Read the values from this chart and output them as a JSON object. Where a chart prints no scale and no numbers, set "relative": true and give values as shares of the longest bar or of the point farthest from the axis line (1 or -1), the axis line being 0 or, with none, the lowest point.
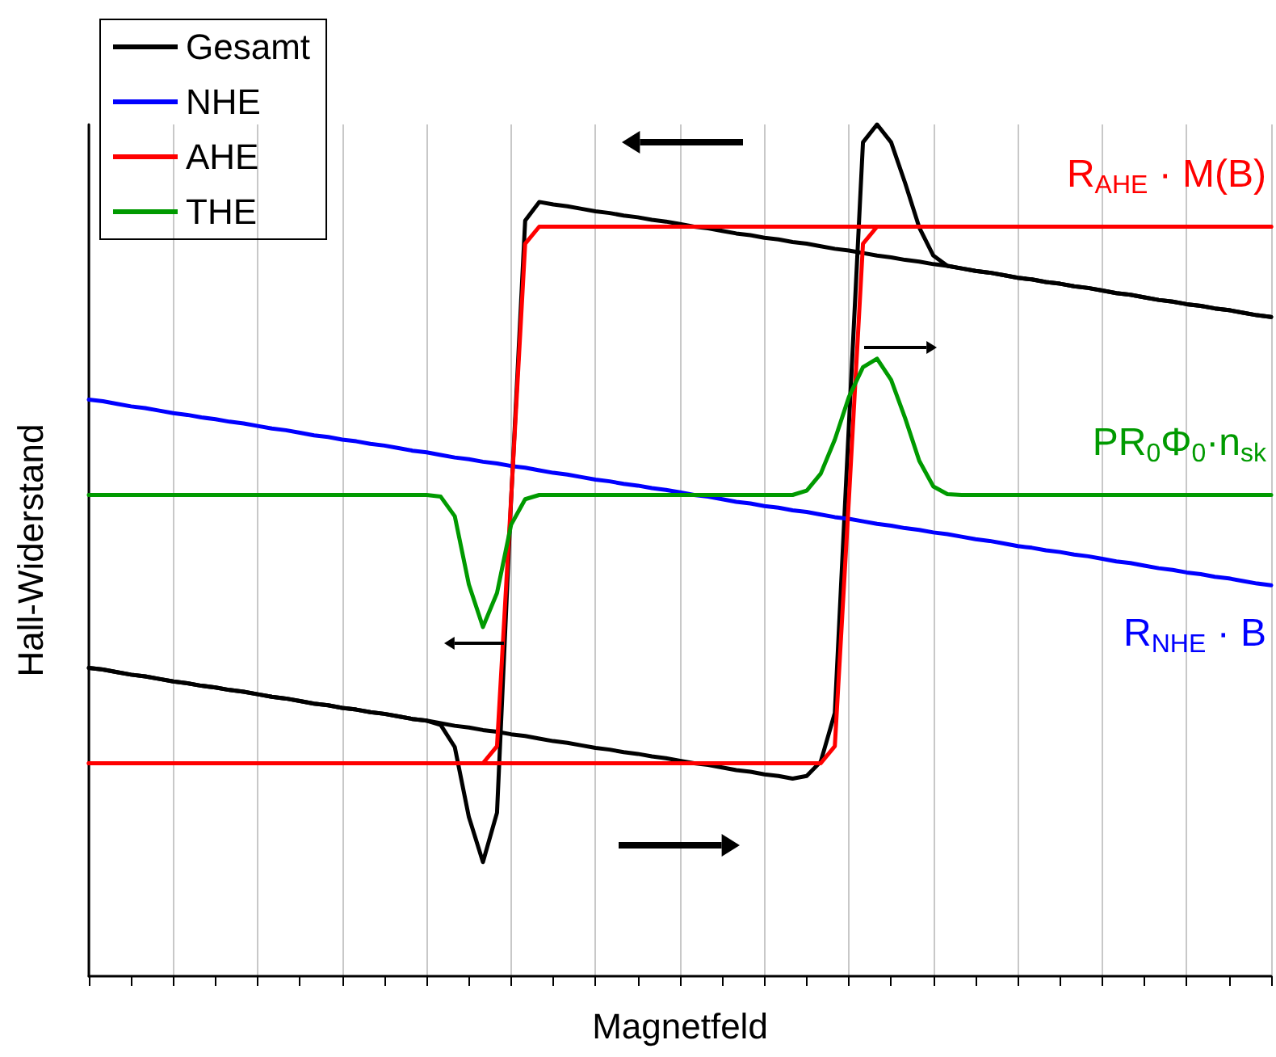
{
  "chart_data": {
    "type": "line",
    "relative": true,
    "xlabel": "Magnetfeld",
    "ylabel": "Hall-Widerstand",
    "legend": "top left",
    "grid": "x",
    "line_style": "solid",
    "categories": [
      null,
      null,
      null,
      null,
      null,
      null,
      null,
      null,
      null,
      null,
      null,
      null,
      null,
      null,
      null,
      null,
      null,
      null,
      null,
      null,
      null,
      null,
      null,
      null,
      null,
      null,
      null,
      null,
      null,
      null,
      null,
      null,
      null,
      null,
      null,
      null,
      null,
      null,
      null,
      null,
      null,
      null,
      null,
      null,
      null,
      null,
      null,
      null,
      null,
      null,
      null,
      null,
      null,
      null,
      null,
      null,
      null,
      null,
      null,
      null,
      null,
      null,
      null,
      null,
      null,
      null,
      null,
      null,
      null,
      null,
      null,
      null,
      null,
      null,
      null,
      null,
      null,
      null,
      null,
      null,
      null,
      null,
      null,
      null,
      null
    ],
    "series": [
      {
        "name": "Gesamt",
        "color": "#000000",
        "values": [
          0.362,
          0.36,
          0.357,
          0.354,
          0.352,
          0.349,
          0.346,
          0.344,
          0.341,
          0.339,
          0.336,
          0.334,
          0.331,
          0.328,
          0.326,
          0.323,
          0.32,
          0.318,
          0.315,
          0.313,
          0.31,
          0.308,
          0.305,
          0.302,
          0.3,
          0.297,
          0.294,
          0.292,
          0.289,
          0.287,
          0.284,
          0.282,
          0.279,
          0.276,
          0.274,
          0.271,
          0.268,
          0.266,
          0.263,
          0.261,
          0.258,
          0.256,
          0.253,
          0.25,
          0.248,
          0.245,
          0.242,
          0.24,
          0.237,
          0.235,
          0.232,
          0.235,
          0.252,
          0.309,
          0.647,
          0.979,
          1,
          0.979,
          0.931,
          0.879,
          0.846,
          0.834,
          0.831,
          0.828,
          0.826,
          0.823,
          0.82,
          0.818,
          0.815,
          0.813,
          0.81,
          0.808,
          0.805,
          0.802,
          0.8,
          0.797,
          0.794,
          0.792,
          0.789,
          0.787,
          0.784,
          0.782,
          0.779,
          0.776,
          0.774
        ]
      },
      {
        "color": "#000000",
        "values": [
          0.362,
          0.36,
          0.357,
          0.354,
          0.352,
          0.349,
          0.346,
          0.344,
          0.341,
          0.339,
          0.336,
          0.334,
          0.331,
          0.328,
          0.326,
          0.323,
          0.32,
          0.318,
          0.315,
          0.313,
          0.31,
          0.308,
          0.305,
          0.302,
          0.3,
          0.295,
          0.269,
          0.187,
          0.134,
          0.192,
          0.559,
          0.887,
          0.909,
          0.906,
          0.904,
          0.901,
          0.898,
          0.896,
          0.893,
          0.891,
          0.888,
          0.886,
          0.883,
          0.88,
          0.878,
          0.875,
          0.872,
          0.87,
          0.867,
          0.865,
          0.862,
          0.86,
          0.857,
          0.854,
          0.852,
          0.849,
          0.846,
          0.844,
          0.841,
          0.839,
          0.836,
          0.834,
          0.831,
          0.828,
          0.826,
          0.823,
          0.82,
          0.818,
          0.815,
          0.813,
          0.81,
          0.808,
          0.805,
          0.802,
          0.8,
          0.797,
          0.794,
          0.792,
          0.789,
          0.787,
          0.784,
          0.782,
          0.779,
          0.776,
          0.774
        ]
      },
      {
        "name": "NHE",
        "color": "#0000ff",
        "values": [
          0.677,
          0.675,
          0.672,
          0.669,
          0.667,
          0.664,
          0.661,
          0.659,
          0.656,
          0.654,
          0.651,
          0.649,
          0.646,
          0.643,
          0.641,
          0.638,
          0.635,
          0.633,
          0.63,
          0.628,
          0.625,
          0.623,
          0.62,
          0.617,
          0.615,
          0.612,
          0.609,
          0.607,
          0.604,
          0.602,
          0.599,
          0.597,
          0.594,
          0.591,
          0.589,
          0.586,
          0.583,
          0.581,
          0.578,
          0.576,
          0.573,
          0.571,
          0.568,
          0.565,
          0.563,
          0.56,
          0.557,
          0.555,
          0.552,
          0.55,
          0.547,
          0.545,
          0.542,
          0.539,
          0.537,
          0.534,
          0.531,
          0.529,
          0.526,
          0.524,
          0.521,
          0.519,
          0.516,
          0.513,
          0.511,
          0.508,
          0.505,
          0.503,
          0.5,
          0.498,
          0.495,
          0.493,
          0.49,
          0.487,
          0.485,
          0.482,
          0.479,
          0.477,
          0.474,
          0.472,
          0.469,
          0.467,
          0.464,
          0.461,
          0.459
        ]
      },
      {
        "name": "AHE",
        "color": "#ff0000",
        "values": [
          0.25,
          0.25,
          0.25,
          0.25,
          0.25,
          0.25,
          0.25,
          0.25,
          0.25,
          0.25,
          0.25,
          0.25,
          0.25,
          0.25,
          0.25,
          0.25,
          0.25,
          0.25,
          0.25,
          0.25,
          0.25,
          0.25,
          0.25,
          0.25,
          0.25,
          0.25,
          0.25,
          0.25,
          0.25,
          0.25,
          0.25,
          0.25,
          0.25,
          0.25,
          0.25,
          0.25,
          0.25,
          0.25,
          0.25,
          0.25,
          0.25,
          0.25,
          0.25,
          0.25,
          0.25,
          0.25,
          0.25,
          0.25,
          0.25,
          0.25,
          0.25,
          0.25,
          0.25,
          0.27,
          0.56,
          0.86,
          0.88,
          0.88,
          0.88,
          0.88,
          0.88,
          0.88,
          0.88,
          0.88,
          0.88,
          0.88,
          0.88,
          0.88,
          0.88,
          0.88,
          0.88,
          0.88,
          0.88,
          0.88,
          0.88,
          0.88,
          0.88,
          0.88,
          0.88,
          0.88,
          0.88,
          0.88,
          0.88,
          0.88,
          0.88
        ]
      },
      {
        "color": "#ff0000",
        "values": [
          0.25,
          0.25,
          0.25,
          0.25,
          0.25,
          0.25,
          0.25,
          0.25,
          0.25,
          0.25,
          0.25,
          0.25,
          0.25,
          0.25,
          0.25,
          0.25,
          0.25,
          0.25,
          0.25,
          0.25,
          0.25,
          0.25,
          0.25,
          0.25,
          0.25,
          0.25,
          0.25,
          0.25,
          0.25,
          0.27,
          0.56,
          0.86,
          0.88,
          0.88,
          0.88,
          0.88,
          0.88,
          0.88,
          0.88,
          0.88,
          0.88,
          0.88,
          0.88,
          0.88,
          0.88,
          0.88,
          0.88,
          0.88,
          0.88,
          0.88,
          0.88,
          0.88,
          0.88,
          0.88,
          0.88,
          0.88,
          0.88,
          0.88,
          0.88,
          0.88,
          0.88,
          0.88,
          0.88,
          0.88,
          0.88,
          0.88,
          0.88,
          0.88,
          0.88,
          0.88,
          0.88,
          0.88,
          0.88,
          0.88,
          0.88,
          0.88,
          0.88,
          0.88,
          0.88,
          0.88,
          0.88,
          0.88,
          0.88,
          0.88,
          0.88
        ]
      },
      {
        "name": "THE",
        "color": "#009a00",
        "values": [
          0.565,
          0.565,
          0.565,
          0.565,
          0.565,
          0.565,
          0.565,
          0.565,
          0.565,
          0.565,
          0.565,
          0.565,
          0.565,
          0.565,
          0.565,
          0.565,
          0.565,
          0.565,
          0.565,
          0.565,
          0.565,
          0.565,
          0.565,
          0.565,
          0.565,
          0.563,
          0.54,
          0.46,
          0.41,
          0.45,
          0.53,
          0.56,
          0.565,
          0.565,
          0.565,
          0.565,
          0.565,
          0.565,
          0.565,
          0.565,
          0.565,
          0.565,
          0.565,
          0.565,
          0.565,
          0.565,
          0.565,
          0.565,
          0.565,
          0.565,
          0.565,
          0.57,
          0.59,
          0.63,
          0.68,
          0.715,
          0.725,
          0.7,
          0.655,
          0.605,
          0.575,
          0.566,
          0.565,
          0.565,
          0.565,
          0.565,
          0.565,
          0.565,
          0.565,
          0.565,
          0.565,
          0.565,
          0.565,
          0.565,
          0.565,
          0.565,
          0.565,
          0.565,
          0.565,
          0.565,
          0.565,
          0.565,
          0.565,
          0.565,
          0.565
        ]
      }
    ],
    "annotations": [
      "R$_{AHE}$ · M(B)",
      "PR$_{0}$Φ$_{0}$·n$_{sk}$",
      "R$_{NHE}$ · B"
    ]
  }
}
